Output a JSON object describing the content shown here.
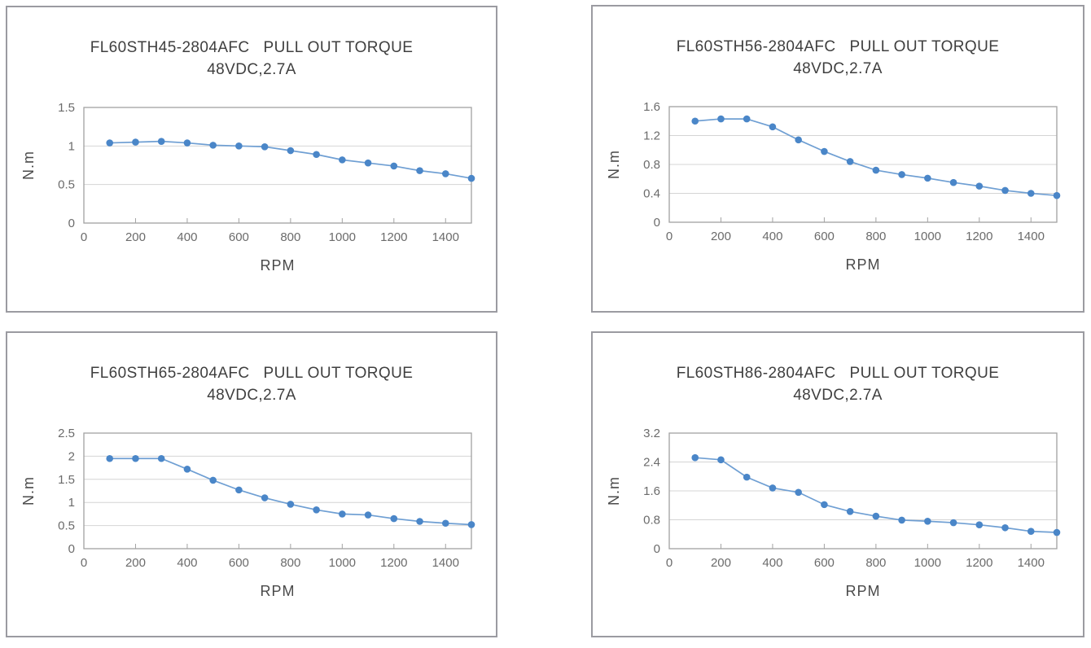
{
  "page": {
    "background": "#ffffff",
    "subtitle_shared": "48VDC,2.7A"
  },
  "colors": {
    "marker": "#4a86c8",
    "line": "#6f9fd3",
    "grid": "#d4d4d4",
    "axis": "#a2a2a2",
    "panel_border": "#9b9ba1",
    "title_text": "#3f3f3f",
    "tick_text": "#6b6b6b",
    "axis_label_text": "#4a4a4a"
  },
  "chart_data": [
    {
      "type": "line",
      "model": "FL60STH45-2804AFC",
      "title": "FL60STH45-2804AFC   PULL OUT TORQUE",
      "subtitle": "48VDC,2.7A",
      "xlabel": "RPM",
      "ylabel": "N.m",
      "grid": true,
      "legend": "none",
      "marker": "circle",
      "xlim": [
        0,
        1500
      ],
      "ylim": [
        0,
        1.5
      ],
      "xticks": [
        "0",
        "200",
        "400",
        "600",
        "800",
        "1000",
        "1200",
        "1400"
      ],
      "yticks": [
        "0",
        "0.5",
        "1",
        "1.5"
      ],
      "x": [
        100,
        200,
        300,
        400,
        500,
        600,
        700,
        800,
        900,
        1000,
        1100,
        1200,
        1300,
        1400,
        1500
      ],
      "y": [
        1.04,
        1.05,
        1.06,
        1.04,
        1.01,
        1.0,
        0.99,
        0.94,
        0.89,
        0.82,
        0.78,
        0.74,
        0.68,
        0.64,
        0.58
      ]
    },
    {
      "type": "line",
      "model": "FL60STH56-2804AFC",
      "title": "FL60STH56-2804AFC   PULL OUT TORQUE",
      "subtitle": "48VDC,2.7A",
      "xlabel": "RPM",
      "ylabel": "N.m",
      "grid": true,
      "legend": "none",
      "marker": "circle",
      "xlim": [
        0,
        1500
      ],
      "ylim": [
        0,
        1.6
      ],
      "xticks": [
        "0",
        "200",
        "400",
        "600",
        "800",
        "1000",
        "1200",
        "1400"
      ],
      "yticks": [
        "0",
        "0.4",
        "0.8",
        "1.2",
        "1.6"
      ],
      "x": [
        100,
        200,
        300,
        400,
        500,
        600,
        700,
        800,
        900,
        1000,
        1100,
        1200,
        1300,
        1400,
        1500
      ],
      "y": [
        1.4,
        1.43,
        1.43,
        1.32,
        1.14,
        0.98,
        0.84,
        0.72,
        0.66,
        0.61,
        0.55,
        0.5,
        0.44,
        0.4,
        0.37
      ]
    },
    {
      "type": "line",
      "model": "FL60STH65-2804AFC",
      "title": "FL60STH65-2804AFC   PULL OUT TORQUE",
      "subtitle": "48VDC,2.7A",
      "xlabel": "RPM",
      "ylabel": "N.m",
      "grid": true,
      "legend": "none",
      "marker": "circle",
      "xlim": [
        0,
        1500
      ],
      "ylim": [
        0,
        2.5
      ],
      "xticks": [
        "0",
        "200",
        "400",
        "600",
        "800",
        "1000",
        "1200",
        "1400"
      ],
      "yticks": [
        "0",
        "0.5",
        "1",
        "1.5",
        "2",
        "2.5"
      ],
      "x": [
        100,
        200,
        300,
        400,
        500,
        600,
        700,
        800,
        900,
        1000,
        1100,
        1200,
        1300,
        1400,
        1500
      ],
      "y": [
        1.95,
        1.95,
        1.95,
        1.72,
        1.48,
        1.27,
        1.1,
        0.96,
        0.84,
        0.75,
        0.73,
        0.65,
        0.59,
        0.55,
        0.52
      ]
    },
    {
      "type": "line",
      "model": "FL60STH86-2804AFC",
      "title": "FL60STH86-2804AFC   PULL OUT TORQUE",
      "subtitle": "48VDC,2.7A",
      "xlabel": "RPM",
      "ylabel": "N.m",
      "grid": true,
      "legend": "none",
      "marker": "circle",
      "xlim": [
        0,
        1500
      ],
      "ylim": [
        0,
        3.2
      ],
      "xticks": [
        "0",
        "200",
        "400",
        "600",
        "800",
        "1000",
        "1200",
        "1400"
      ],
      "yticks": [
        "0",
        "0.8",
        "1.6",
        "2.4",
        "3.2"
      ],
      "x": [
        100,
        200,
        300,
        400,
        500,
        600,
        700,
        800,
        900,
        1000,
        1100,
        1200,
        1300,
        1400,
        1500
      ],
      "y": [
        2.52,
        2.46,
        1.98,
        1.68,
        1.56,
        1.22,
        1.03,
        0.9,
        0.79,
        0.76,
        0.72,
        0.66,
        0.58,
        0.48,
        0.45
      ]
    }
  ]
}
